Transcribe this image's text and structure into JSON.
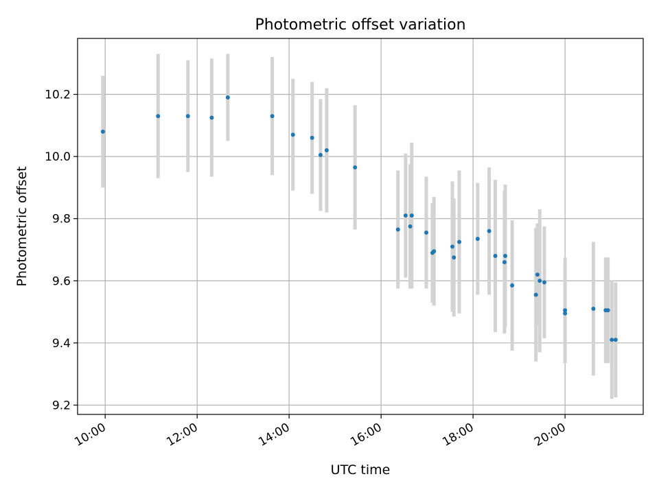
{
  "chart_data": {
    "type": "scatter",
    "title": "Photometric offset variation",
    "xlabel": "UTC time",
    "ylabel": "Photometric offset",
    "x_ticks": [
      "10:00",
      "12:00",
      "14:00",
      "16:00",
      "18:00",
      "20:00"
    ],
    "y_ticks": [
      "9.2",
      "9.4",
      "9.6",
      "9.8",
      "10.0",
      "10.2"
    ],
    "xlim": [
      "09:24",
      "21:42"
    ],
    "ylim": [
      9.17,
      10.38
    ],
    "grid": true,
    "colors": {
      "point": "#1f77b4",
      "errorbar": "#d3d3d3",
      "grid": "#b0b0b0"
    },
    "points": [
      {
        "x": "09:57",
        "y": 10.08,
        "err": 0.18
      },
      {
        "x": "11:09",
        "y": 10.13,
        "err": 0.2
      },
      {
        "x": "11:48",
        "y": 10.13,
        "err": 0.18
      },
      {
        "x": "12:19",
        "y": 10.125,
        "err": 0.19
      },
      {
        "x": "12:40",
        "y": 10.19,
        "err": 0.14
      },
      {
        "x": "13:38",
        "y": 10.13,
        "err": 0.19
      },
      {
        "x": "14:05",
        "y": 10.07,
        "err": 0.18
      },
      {
        "x": "14:30",
        "y": 10.06,
        "err": 0.18
      },
      {
        "x": "14:41",
        "y": 10.005,
        "err": 0.18
      },
      {
        "x": "14:49",
        "y": 10.02,
        "err": 0.2
      },
      {
        "x": "15:26",
        "y": 9.965,
        "err": 0.2
      },
      {
        "x": "16:22",
        "y": 9.765,
        "err": 0.19
      },
      {
        "x": "16:32",
        "y": 9.81,
        "err": 0.2
      },
      {
        "x": "16:38",
        "y": 9.775,
        "err": 0.2
      },
      {
        "x": "16:40",
        "y": 9.81,
        "err": 0.235
      },
      {
        "x": "16:59",
        "y": 9.755,
        "err": 0.18
      },
      {
        "x": "17:07",
        "y": 9.69,
        "err": 0.16
      },
      {
        "x": "17:09",
        "y": 9.695,
        "err": 0.175
      },
      {
        "x": "17:33",
        "y": 9.71,
        "err": 0.21
      },
      {
        "x": "17:35",
        "y": 9.675,
        "err": 0.19
      },
      {
        "x": "17:42",
        "y": 9.725,
        "err": 0.23
      },
      {
        "x": "18:06",
        "y": 9.735,
        "err": 0.18
      },
      {
        "x": "18:21",
        "y": 9.76,
        "err": 0.205
      },
      {
        "x": "18:29",
        "y": 9.68,
        "err": 0.245
      },
      {
        "x": "18:41",
        "y": 9.66,
        "err": 0.23
      },
      {
        "x": "18:42",
        "y": 9.68,
        "err": 0.23
      },
      {
        "x": "18:51",
        "y": 9.585,
        "err": 0.21
      },
      {
        "x": "19:22",
        "y": 9.555,
        "err": 0.215
      },
      {
        "x": "19:24",
        "y": 9.62,
        "err": 0.165
      },
      {
        "x": "19:27",
        "y": 9.6,
        "err": 0.23
      },
      {
        "x": "19:33",
        "y": 9.595,
        "err": 0.18
      },
      {
        "x": "20:00",
        "y": 9.495,
        "err": 0.16
      },
      {
        "x": "20:00",
        "y": 9.505,
        "err": 0.17
      },
      {
        "x": "20:37",
        "y": 9.51,
        "err": 0.215
      },
      {
        "x": "20:53",
        "y": 9.505,
        "err": 0.17
      },
      {
        "x": "20:56",
        "y": 9.505,
        "err": 0.17
      },
      {
        "x": "21:01",
        "y": 9.41,
        "err": 0.19
      },
      {
        "x": "21:06",
        "y": 9.41,
        "err": 0.185
      }
    ]
  }
}
